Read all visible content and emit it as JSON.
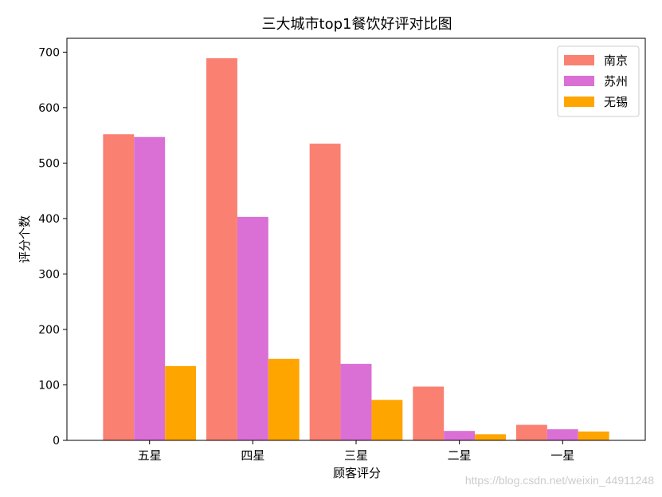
{
  "chart_data": {
    "type": "bar",
    "title": "三大城市top1餐饮好评对比图",
    "xlabel": "顾客评分",
    "ylabel": "评分个数",
    "categories": [
      "五星",
      "四星",
      "三星",
      "二星",
      "一星"
    ],
    "series": [
      {
        "name": "南京",
        "color": "#FA8072",
        "values": [
          552,
          689,
          535,
          97,
          28
        ]
      },
      {
        "name": "苏州",
        "color": "#DA70D6",
        "values": [
          547,
          403,
          138,
          17,
          20
        ]
      },
      {
        "name": "无锡",
        "color": "#FFA500",
        "values": [
          134,
          147,
          73,
          11,
          16
        ]
      }
    ],
    "ylim": [
      0,
      725
    ],
    "yticks": [
      0,
      100,
      200,
      300,
      400,
      500,
      600,
      700
    ],
    "grid": false,
    "legend_position": "top-right"
  },
  "watermark": "https://blog.csdn.net/weixin_44911248"
}
